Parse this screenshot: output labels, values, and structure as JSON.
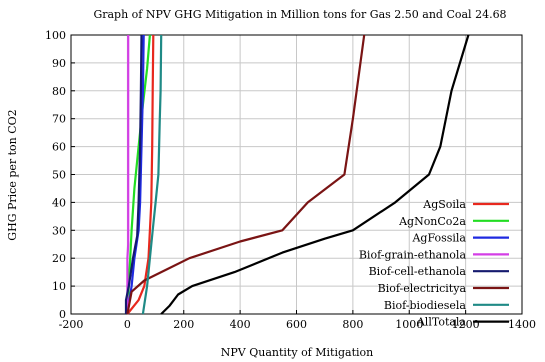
{
  "chart_data": {
    "type": "line",
    "title": "Graph of NPV GHG Mitigation in Million tons for Gas 2.50 and Coal 24.68",
    "xlabel": "NPV Quantity of Mitigation",
    "ylabel": "GHG Price per ton CO2",
    "xlim": [
      -200,
      1400
    ],
    "ylim": [
      0,
      100
    ],
    "xticks": [
      -200,
      0,
      200,
      400,
      600,
      800,
      1000,
      1200,
      1400
    ],
    "yticks": [
      0,
      10,
      20,
      30,
      40,
      50,
      60,
      70,
      80,
      90,
      100
    ],
    "grid": true,
    "legend_position": "bottom-right",
    "series": [
      {
        "name": "AgSoila",
        "color": "#e8281e",
        "points": [
          [
            0,
            0
          ],
          [
            40,
            5
          ],
          [
            60,
            10
          ],
          [
            75,
            20
          ],
          [
            85,
            40
          ],
          [
            88,
            60
          ],
          [
            90,
            80
          ],
          [
            92,
            100
          ]
        ]
      },
      {
        "name": "AgNonCo2a",
        "color": "#22dd22",
        "points": [
          [
            0,
            0
          ],
          [
            5,
            10
          ],
          [
            10,
            20
          ],
          [
            15,
            30
          ],
          [
            25,
            45
          ],
          [
            40,
            60
          ],
          [
            55,
            75
          ],
          [
            70,
            88
          ],
          [
            80,
            100
          ]
        ]
      },
      {
        "name": "AgFossila",
        "color": "#1f2ae0",
        "points": [
          [
            0,
            0
          ],
          [
            15,
            10
          ],
          [
            25,
            20
          ],
          [
            40,
            30
          ],
          [
            45,
            40
          ],
          [
            50,
            60
          ],
          [
            55,
            80
          ],
          [
            58,
            100
          ]
        ]
      },
      {
        "name": "Biof-grain-ethanola",
        "color": "#d43ee6",
        "points": [
          [
            0,
            0
          ],
          [
            0,
            20
          ],
          [
            3,
            25
          ],
          [
            3,
            40
          ],
          [
            3,
            60
          ],
          [
            3,
            80
          ],
          [
            3,
            100
          ]
        ]
      },
      {
        "name": "Biof-cell-ethanola",
        "color": "#151a6e",
        "points": [
          [
            -5,
            0
          ],
          [
            -5,
            5
          ],
          [
            5,
            10
          ],
          [
            20,
            20
          ],
          [
            35,
            28
          ],
          [
            40,
            40
          ],
          [
            45,
            60
          ],
          [
            48,
            80
          ],
          [
            50,
            100
          ]
        ]
      },
      {
        "name": "Biof-electricitya",
        "color": "#7a1414",
        "points": [
          [
            0,
            0
          ],
          [
            15,
            8
          ],
          [
            60,
            12
          ],
          [
            140,
            16
          ],
          [
            220,
            20
          ],
          [
            400,
            26
          ],
          [
            550,
            30
          ],
          [
            640,
            40
          ],
          [
            770,
            50
          ],
          [
            800,
            70
          ],
          [
            840,
            100
          ]
        ]
      },
      {
        "name": "Biof-biodiesela",
        "color": "#1f8a86",
        "points": [
          [
            55,
            0
          ],
          [
            70,
            10
          ],
          [
            80,
            20
          ],
          [
            90,
            30
          ],
          [
            100,
            40
          ],
          [
            110,
            50
          ],
          [
            115,
            70
          ],
          [
            118,
            80
          ],
          [
            120,
            100
          ]
        ]
      },
      {
        "name": "AllTotala",
        "color": "#000000",
        "points": [
          [
            120,
            0
          ],
          [
            150,
            3
          ],
          [
            180,
            7
          ],
          [
            230,
            10
          ],
          [
            380,
            15
          ],
          [
            550,
            22
          ],
          [
            700,
            27
          ],
          [
            800,
            30
          ],
          [
            950,
            40
          ],
          [
            1070,
            50
          ],
          [
            1110,
            60
          ],
          [
            1150,
            80
          ],
          [
            1210,
            100
          ]
        ]
      }
    ]
  }
}
